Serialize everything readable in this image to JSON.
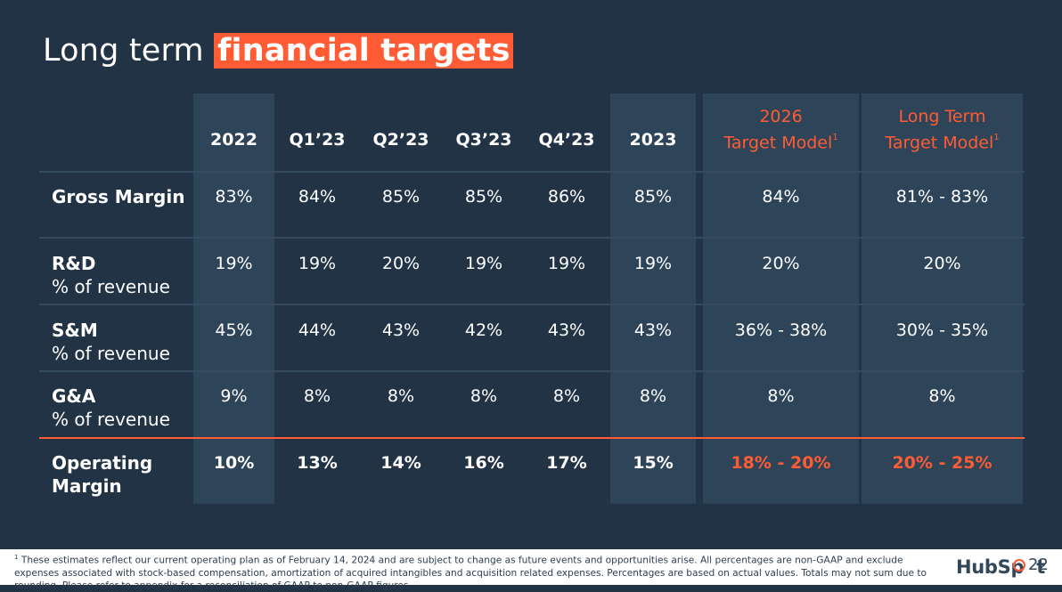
{
  "title": {
    "plain": "Long term ",
    "highlight": "financial targets"
  },
  "columns": [
    {
      "label": "2022"
    },
    {
      "label": "Q1’23"
    },
    {
      "label": "Q2’23"
    },
    {
      "label": "Q3’23"
    },
    {
      "label": "Q4’23"
    },
    {
      "label": "2023"
    },
    {
      "line1": "2026",
      "line2": "Target Model",
      "footnote_mark": "1"
    },
    {
      "line1": "Long Term",
      "line2": "Target Model",
      "footnote_mark": "1"
    }
  ],
  "rows": [
    {
      "label": "Gross Margin",
      "sublabel": "",
      "values": [
        "83%",
        "84%",
        "85%",
        "85%",
        "86%",
        "85%",
        "84%",
        "81% - 83%"
      ]
    },
    {
      "label": "R&D",
      "sublabel": "% of revenue",
      "values": [
        "19%",
        "19%",
        "20%",
        "19%",
        "19%",
        "19%",
        "20%",
        "20%"
      ]
    },
    {
      "label": "S&M",
      "sublabel": "% of revenue",
      "values": [
        "45%",
        "44%",
        "43%",
        "42%",
        "43%",
        "43%",
        "36% - 38%",
        "30% - 35%"
      ]
    },
    {
      "label": "G&A",
      "sublabel": "% of revenue",
      "values": [
        "9%",
        "8%",
        "8%",
        "8%",
        "8%",
        "8%",
        "8%",
        "8%"
      ]
    },
    {
      "label_line1": "Operating",
      "label_line2": "Margin",
      "values": [
        "10%",
        "13%",
        "14%",
        "16%",
        "17%",
        "15%",
        "18% - 20%",
        "20% - 25%"
      ]
    }
  ],
  "footnote": {
    "mark": "1",
    "text": "These estimates reflect our current operating plan as of February 14, 2024 and are subject to change as future events and opportunities arise. All percentages are non-GAAP and exclude expenses associated with stock-based compensation, amortization of acquired intangibles and acquisition related expenses. Percentages are based on actual values. Totals may not sum due to rounding. Please refer to appendix for a reconciliation of GAAP to non-GAAP figures."
  },
  "logo": {
    "part1": "HubSp",
    "part2": "t"
  },
  "page_number": "22",
  "colors": {
    "background": "#213345",
    "panel": "#2e4458",
    "accent": "#ff5c35"
  }
}
